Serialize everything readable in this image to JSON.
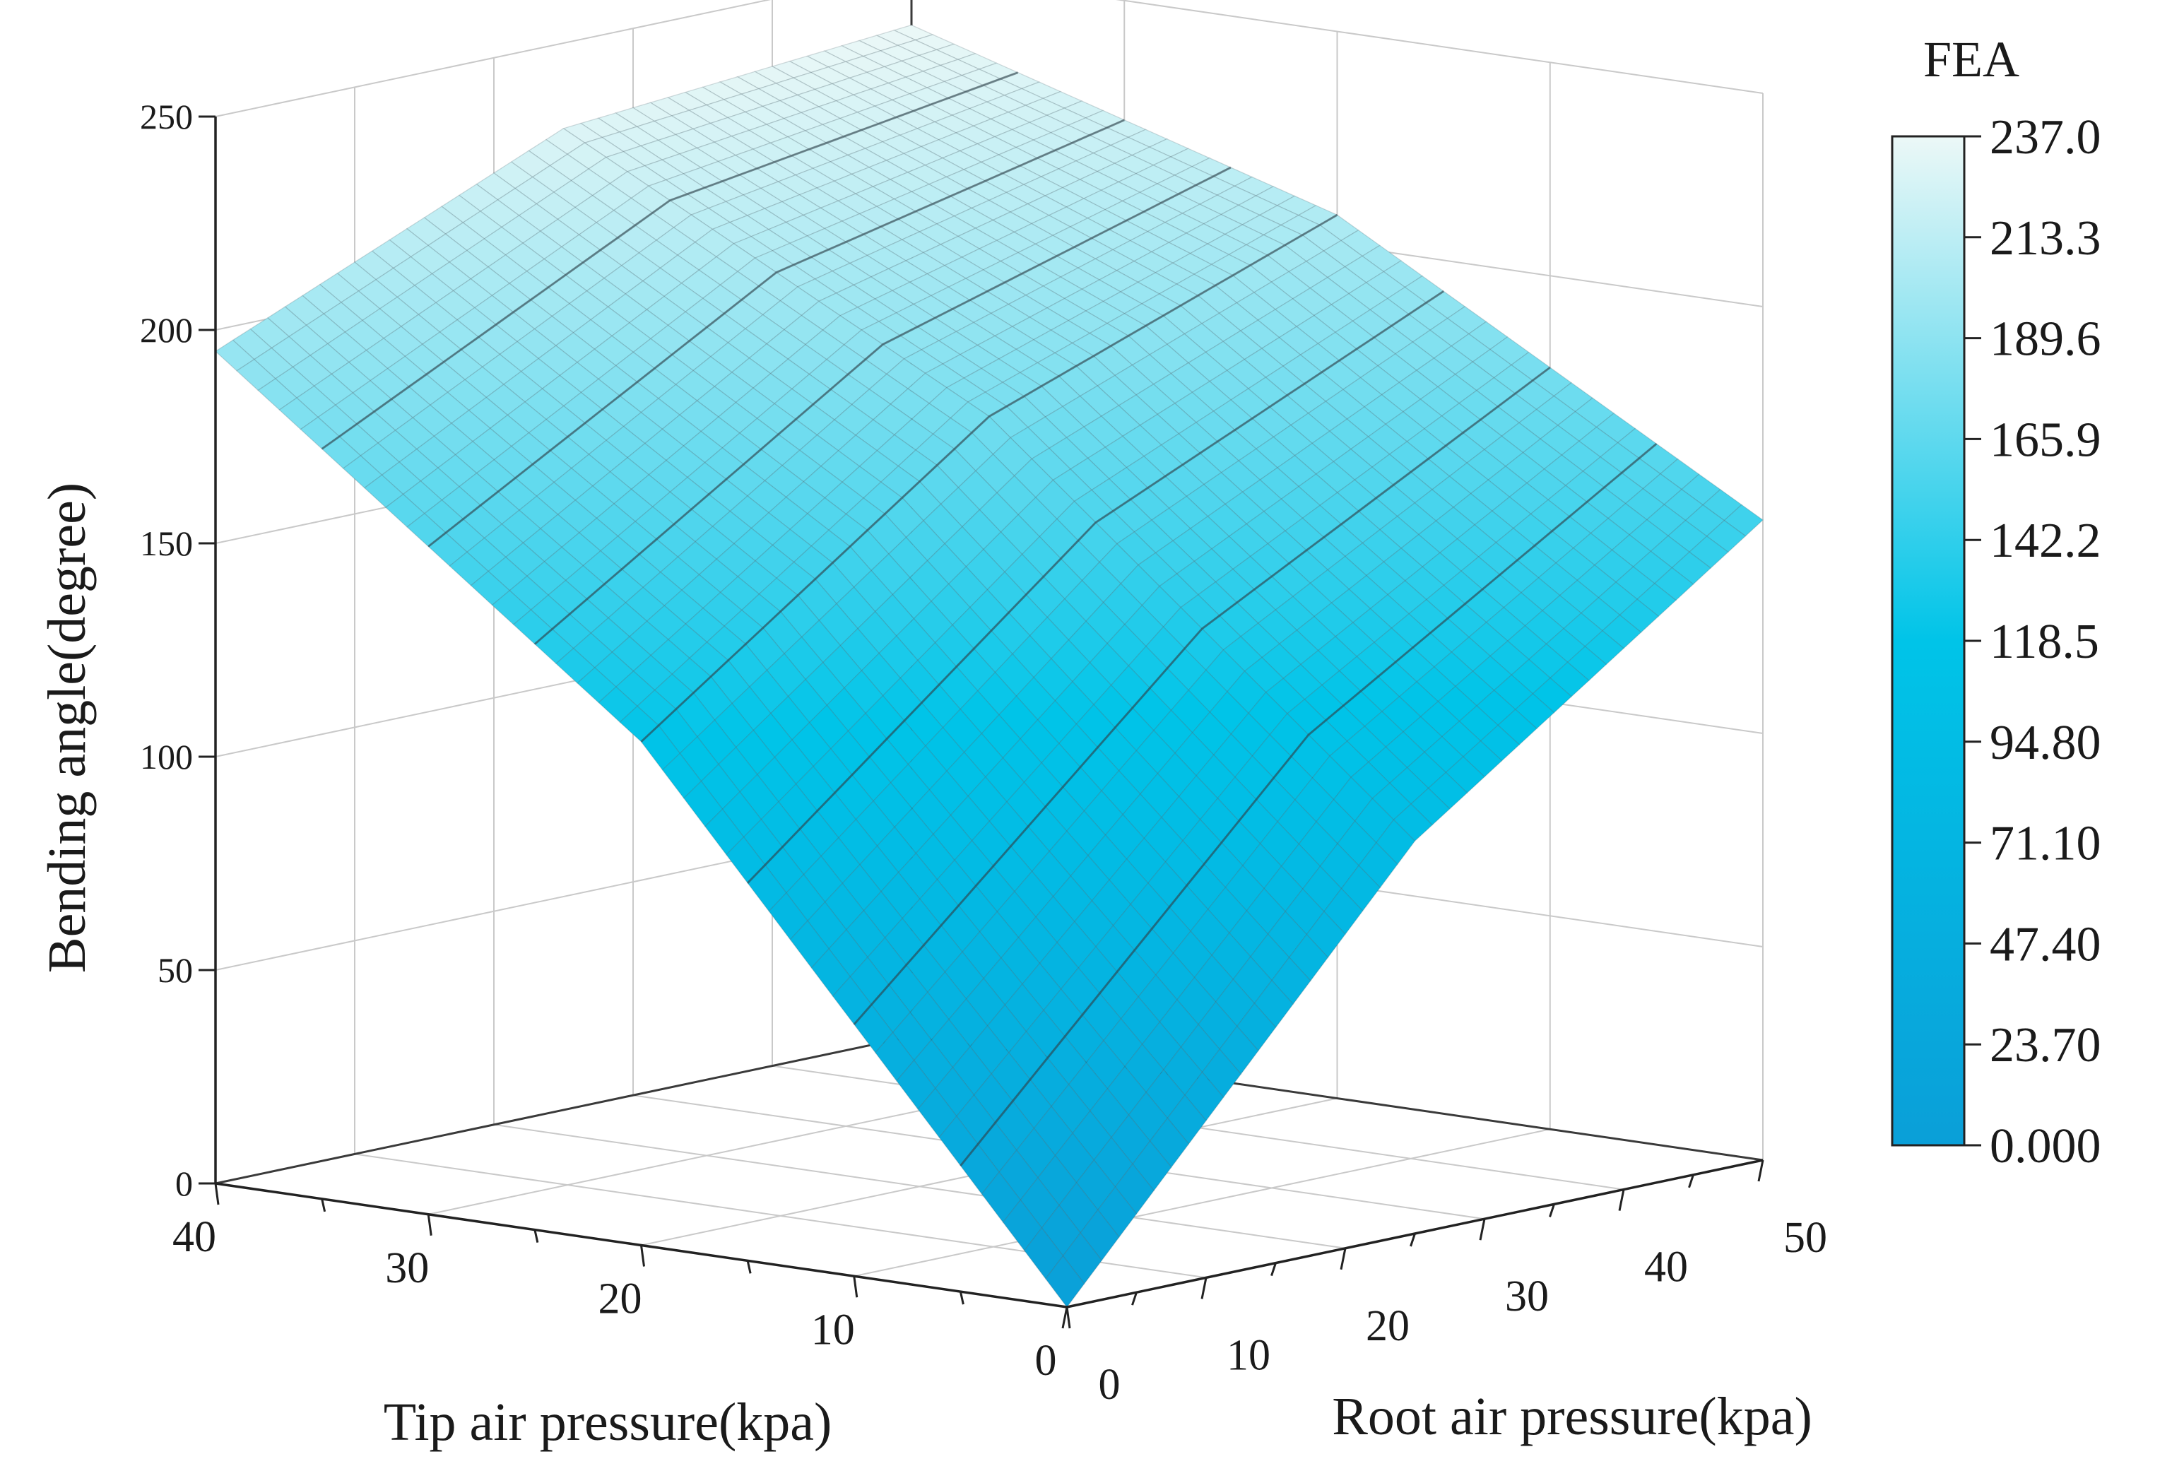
{
  "chart_data": {
    "type": "surface",
    "title": "",
    "zlabel": "Bending angle(degree)",
    "xlabel": "Tip air pressure(kpa)",
    "ylabel": "Root air pressure(kpa)",
    "colorbar_title": "FEA",
    "x_ticks": [
      "40",
      "30",
      "20",
      "10",
      "0"
    ],
    "y_ticks": [
      "0",
      "10",
      "20",
      "30",
      "40",
      "50"
    ],
    "z_ticks": [
      "0",
      "50",
      "100",
      "150",
      "200",
      "250"
    ],
    "colorbar_ticks": [
      "237.0",
      "213.3",
      "189.6",
      "165.9",
      "142.2",
      "118.5",
      "94.80",
      "71.10",
      "47.40",
      "23.70",
      "0.000"
    ],
    "xlim": [
      0,
      40
    ],
    "ylim": [
      0,
      50
    ],
    "zlim": [
      0,
      250
    ],
    "color_range": [
      0,
      237
    ],
    "colormap": [
      "#0a9fd8",
      "#00c4e8",
      "#ecf8f7"
    ],
    "grid": true,
    "tip_pressure": [
      0,
      20,
      40
    ],
    "root_pressure": [
      0,
      25,
      50
    ],
    "bending_angle": [
      [
        0,
        92,
        150
      ],
      [
        118,
        177,
        207
      ],
      [
        195,
        230,
        237
      ]
    ]
  }
}
